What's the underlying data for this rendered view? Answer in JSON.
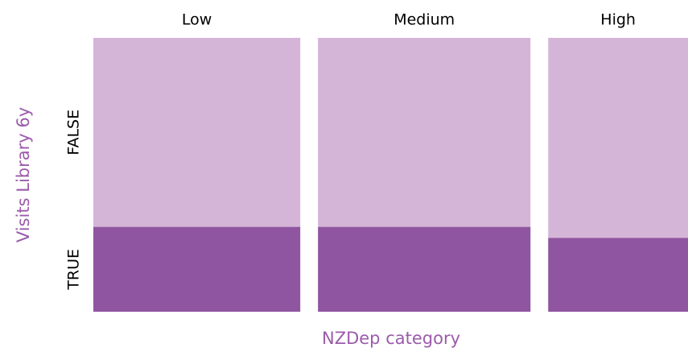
{
  "chart_data": {
    "type": "mosaic",
    "x_label": "NZDep category",
    "y_label": "Visits Library 6y",
    "categories": [
      "Low",
      "Medium",
      "High"
    ],
    "widths": [
      37,
      38,
      25
    ],
    "series": [
      {
        "name": "FALSE",
        "color": "#d4b5d8",
        "values": [
          69,
          69,
          73
        ]
      },
      {
        "name": "TRUE",
        "color": "#8f55a0",
        "values": [
          31,
          31,
          27
        ]
      }
    ]
  }
}
